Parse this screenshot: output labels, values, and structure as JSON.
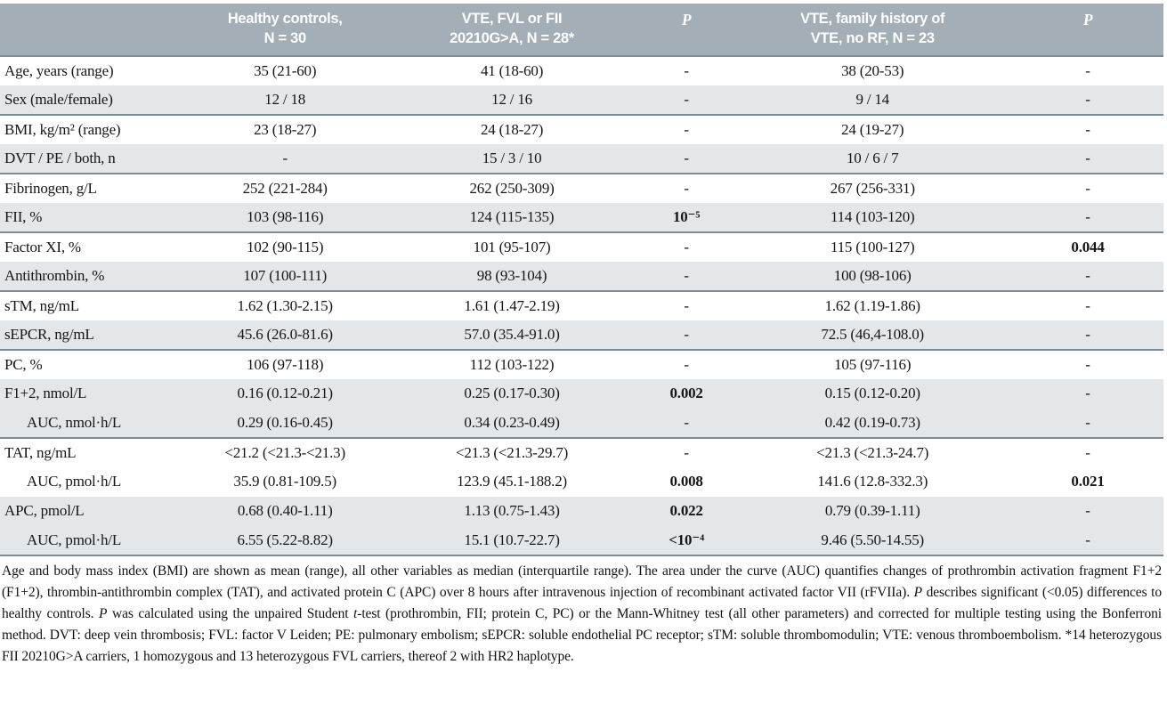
{
  "table": {
    "columns": [
      {
        "label": ""
      },
      {
        "label": "Healthy controls,\nN = 30"
      },
      {
        "label": "VTE, FVL or FII\n20210G>A, N = 28*"
      },
      {
        "label": "P",
        "italic": true
      },
      {
        "label": "VTE, family history of\nVTE, no RF, N = 23"
      },
      {
        "label": "P",
        "italic": true
      }
    ],
    "rows": [
      {
        "label": "Age, years (range)",
        "indent": false,
        "shade": false,
        "group_end": false,
        "cells": [
          "35 (21-60)",
          "41 (18-60)",
          "-",
          "38 (20-53)",
          "-"
        ]
      },
      {
        "label": "Sex (male/female)",
        "indent": false,
        "shade": true,
        "group_end": true,
        "cells": [
          "12 / 18",
          "12 / 16",
          "-",
          "9 / 14",
          "-"
        ]
      },
      {
        "label": "BMI, kg/m² (range)",
        "indent": false,
        "shade": false,
        "group_end": false,
        "cells": [
          "23 (18-27)",
          "24 (18-27)",
          "-",
          "24 (19-27)",
          "-"
        ]
      },
      {
        "label": "DVT / PE / both, n",
        "indent": false,
        "shade": true,
        "group_end": true,
        "cells": [
          "-",
          "15 / 3 / 10",
          "-",
          "10 / 6 / 7",
          "-"
        ]
      },
      {
        "label": "Fibrinogen, g/L",
        "indent": false,
        "shade": false,
        "group_end": false,
        "cells": [
          "252 (221-284)",
          "262 (250-309)",
          "-",
          "267 (256-331)",
          "-"
        ]
      },
      {
        "label": "FII, %",
        "indent": false,
        "shade": true,
        "group_end": true,
        "cells": [
          "103 (98-116)",
          "124 (115-135)",
          "10⁻⁵",
          "114 (103-120)",
          "-"
        ]
      },
      {
        "label": "Factor XI, %",
        "indent": false,
        "shade": false,
        "group_end": false,
        "cells": [
          "102 (90-115)",
          "101 (95-107)",
          "-",
          "115 (100-127)",
          "0.044"
        ]
      },
      {
        "label": "Antithrombin, %",
        "indent": false,
        "shade": true,
        "group_end": true,
        "cells": [
          "107 (100-111)",
          "98 (93-104)",
          "-",
          "100 (98-106)",
          "-"
        ]
      },
      {
        "label": "sTM, ng/mL",
        "indent": false,
        "shade": false,
        "group_end": false,
        "cells": [
          "1.62 (1.30-2.15)",
          "1.61 (1.47-2.19)",
          "-",
          "1.62 (1.19-1.86)",
          "-"
        ]
      },
      {
        "label": "sEPCR, ng/mL",
        "indent": false,
        "shade": true,
        "group_end": true,
        "cells": [
          "45.6 (26.0-81.6)",
          "57.0 (35.4-91.0)",
          "-",
          "72.5 (46,4-108.0)",
          "-"
        ]
      },
      {
        "label": "PC, %",
        "indent": false,
        "shade": false,
        "group_end": false,
        "cells": [
          "106 (97-118)",
          "112 (103-122)",
          "-",
          "105 (97-116)",
          "-"
        ]
      },
      {
        "label": "F1+2, nmol/L",
        "indent": false,
        "shade": true,
        "group_end": false,
        "cells": [
          "0.16 (0.12-0.21)",
          "0.25 (0.17-0.30)",
          "0.002",
          "0.15 (0.12-0.20)",
          "-"
        ]
      },
      {
        "label": "AUC, nmol·h/L",
        "indent": true,
        "shade": true,
        "group_end": true,
        "cells": [
          "0.29 (0.16-0.45)",
          "0.34 (0.23-0.49)",
          "-",
          "0.42 (0.19-0.73)",
          "-"
        ]
      },
      {
        "label": "TAT, ng/mL",
        "indent": false,
        "shade": false,
        "group_end": false,
        "cells": [
          "<21.2 (<21.3-<21.3)",
          "<21.3 (<21.3-29.7)",
          "-",
          "<21.3 (<21.3-24.7)",
          "-"
        ]
      },
      {
        "label": "AUC, pmol·h/L",
        "indent": true,
        "shade": false,
        "group_end": false,
        "cells": [
          "35.9 (0.81-109.5)",
          "123.9 (45.1-188.2)",
          "0.008",
          "141.6 (12.8-332.3)",
          "0.021"
        ]
      },
      {
        "label": "APC, pmol/L",
        "indent": false,
        "shade": true,
        "group_end": false,
        "cells": [
          "0.68 (0.40-1.11)",
          "1.13 (0.75-1.43)",
          "0.022",
          "0.79 (0.39-1.11)",
          "-"
        ]
      },
      {
        "label": "AUC, pmol·h/L",
        "indent": true,
        "shade": true,
        "group_end": true,
        "cells": [
          "6.55 (5.22-8.82)",
          "15.1 (10.7-22.7)",
          "<10⁻⁴",
          "9.46 (5.50-14.55)",
          "-"
        ]
      }
    ]
  },
  "footnote_segments": [
    {
      "t": "Age and body mass index (BMI) are shown as mean (range), all other variables as median (interquartile range). The area under the curve (AUC) quantifies changes of prothrombin activation fragment F1+2 (F1+2), thrombin-antithrombin complex (TAT), and activated protein C (APC) over 8 hours after intravenous injection of recombinant activated factor VII (rFVIIa). ",
      "i": false
    },
    {
      "t": "P",
      "i": true
    },
    {
      "t": " describes significant (<0.05) differences to healthy controls. ",
      "i": false
    },
    {
      "t": "P",
      "i": true
    },
    {
      "t": " was calculated using the unpaired Student ",
      "i": false
    },
    {
      "t": "t",
      "i": true
    },
    {
      "t": "-test (prothrombin, FII; protein C, PC) or the Mann-Whitney test (all other parameters) and corrected for multiple testing using the Bonferroni method. DVT: deep vein thrombosis; FVL: factor V Leiden; PE: pulmonary embolism; sEPCR: soluble endothelial PC receptor; sTM: soluble thrombomodulin; VTE: venous thromboembolism. *14 heterozygous FII 20210G>A carriers, 1 homozygous and 13 heterozygous FVL carriers, thereof 2 with HR2 haplotype.",
      "i": false
    }
  ]
}
